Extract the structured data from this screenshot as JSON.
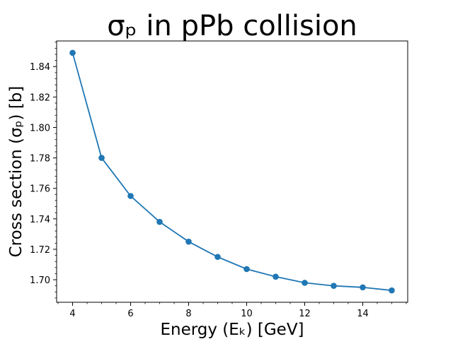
{
  "chart_data": {
    "type": "line",
    "title": "σₚ in pPb collision",
    "xlabel": "Energy (Eₖ) [GeV]",
    "ylabel": "Cross section (σₚ) [b]",
    "x": [
      4,
      5,
      6,
      7,
      8,
      9,
      10,
      11,
      12,
      13,
      14,
      15
    ],
    "series": [
      {
        "values": [
          1.849,
          1.78,
          1.755,
          1.738,
          1.725,
          1.715,
          1.707,
          1.702,
          1.698,
          1.696,
          1.695,
          1.693
        ],
        "color": "#1f77b4",
        "marker": "circle"
      }
    ],
    "xlim": [
      3.45,
      15.55
    ],
    "ylim": [
      1.6852,
      1.8568
    ],
    "xticks": [
      4,
      6,
      8,
      10,
      12,
      14
    ],
    "xtick_labels": [
      "4",
      "6",
      "8",
      "10",
      "12",
      "14"
    ],
    "yticks": [
      1.7,
      1.72,
      1.74,
      1.76,
      1.78,
      1.8,
      1.82,
      1.84
    ],
    "ytick_labels": [
      "1.70",
      "1.72",
      "1.74",
      "1.76",
      "1.78",
      "1.80",
      "1.82",
      "1.84"
    ],
    "grid": false,
    "minor_ticks": true
  }
}
